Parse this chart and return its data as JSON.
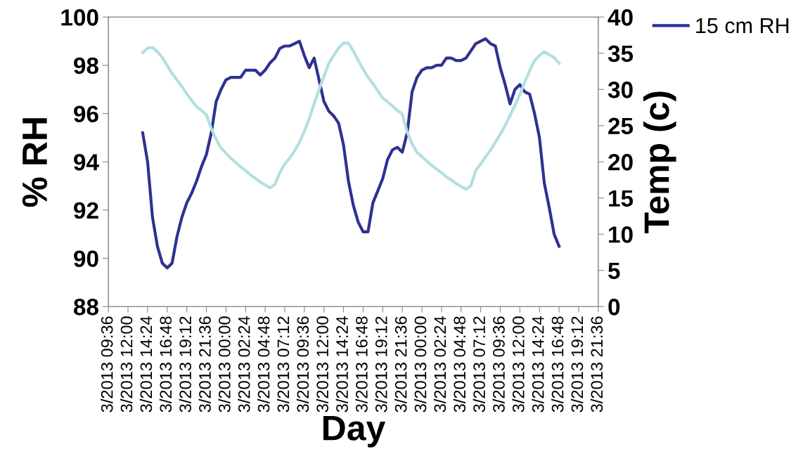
{
  "chart_data": {
    "type": "line",
    "xlabel": "Day",
    "ylabel": "% RH",
    "y2label": "Temp (c)",
    "categories": [
      "3/2013 09:36",
      null,
      null,
      null,
      "3/2013 12:00",
      null,
      null,
      null,
      "3/2013 14:24",
      null,
      null,
      null,
      "3/2013 16:48",
      null,
      null,
      null,
      "3/2013 19:12",
      null,
      null,
      null,
      "3/2013 21:36",
      null,
      null,
      null,
      "3/2013 00:00",
      null,
      null,
      null,
      "3/2013 02:24",
      null,
      null,
      null,
      "3/2013 04:48",
      null,
      null,
      null,
      "3/2013 07:12",
      null,
      null,
      null,
      "3/2013 09:36",
      null,
      null,
      null,
      "3/2013 12:00",
      null,
      null,
      null,
      "3/2013 14:24",
      null,
      null,
      null,
      "3/2013 16:48",
      null,
      null,
      null,
      "3/2013 19:12",
      null,
      null,
      null,
      "3/2013 21:36",
      null,
      null,
      null,
      "3/2013 00:00",
      null,
      null,
      null,
      "3/2013 02:24",
      null,
      null,
      null,
      "3/2013 04:48",
      null,
      null,
      null,
      "3/2013 07:12",
      null,
      null,
      null,
      "3/2013 09:36",
      null,
      null,
      null,
      "3/2013 12:00",
      null,
      null,
      null,
      "3/2013 14:24",
      null,
      null,
      null,
      "3/2013 16:48",
      null,
      null,
      null,
      "3/2013 19:12",
      null,
      null,
      null,
      "3/2013 21:36"
    ],
    "ylim": [
      88,
      100
    ],
    "yticks": [
      88,
      90,
      92,
      94,
      96,
      98,
      100
    ],
    "y2lim": [
      0,
      40
    ],
    "y2ticks": [
      0,
      5,
      10,
      15,
      20,
      25,
      30,
      35,
      40
    ],
    "grid": false,
    "legend": "top right",
    "marker": "none",
    "line_style": "solid",
    "series": [
      {
        "name": "15 cm RH",
        "color": "#2e3192",
        "values": [
          null,
          null,
          null,
          null,
          null,
          null,
          null,
          95.2,
          94.0,
          91.7,
          90.5,
          89.8,
          89.6,
          89.8,
          90.9,
          91.7,
          92.3,
          92.7,
          93.2,
          93.8,
          94.3,
          95.2,
          96.5,
          97.0,
          97.4,
          97.5,
          97.5,
          97.5,
          97.8,
          97.8,
          97.8,
          97.6,
          97.8,
          98.1,
          98.3,
          98.7,
          98.8,
          98.8,
          98.9,
          99.0,
          98.4,
          97.9,
          98.3,
          97.4,
          96.5,
          96.1,
          95.9,
          95.6,
          94.7,
          93.2,
          92.2,
          91.5,
          91.1,
          91.1,
          92.3,
          92.8,
          93.3,
          94.1,
          94.5,
          94.6,
          94.4,
          95.2,
          96.9,
          97.5,
          97.8,
          97.9,
          97.9,
          98.0,
          98.0,
          98.3,
          98.3,
          98.2,
          98.2,
          98.3,
          98.6,
          98.9,
          99.0,
          99.1,
          98.9,
          98.8,
          97.9,
          97.2,
          96.4,
          97.0,
          97.2,
          96.9,
          96.8,
          96.0,
          95.0,
          93.1,
          92.1,
          91.0,
          90.5,
          null,
          null,
          null,
          null,
          null,
          null,
          null,
          null
        ]
      },
      {
        "color": "#b3dfe0",
        "axis": "y2",
        "values": [
          null,
          null,
          null,
          null,
          null,
          null,
          null,
          35.1,
          35.7,
          35.8,
          35.2,
          34.4,
          33.3,
          32.2,
          31.3,
          30.4,
          29.4,
          28.5,
          27.6,
          27.1,
          26.5,
          24.6,
          23.1,
          21.9,
          21.2,
          20.5,
          19.9,
          19.3,
          18.8,
          18.2,
          17.7,
          17.2,
          16.8,
          16.4,
          16.9,
          18.5,
          19.7,
          20.5,
          21.5,
          22.7,
          24.2,
          26.0,
          28.0,
          30.0,
          31.8,
          33.6,
          34.7,
          35.7,
          36.4,
          36.4,
          35.3,
          34.0,
          32.8,
          31.7,
          30.8,
          29.8,
          28.8,
          28.3,
          27.7,
          27.1,
          26.6,
          24.1,
          22.5,
          21.3,
          20.7,
          20.1,
          19.5,
          19.0,
          18.5,
          17.9,
          17.5,
          17.0,
          16.6,
          16.2,
          16.7,
          18.8,
          19.7,
          20.7,
          21.6,
          22.7,
          23.8,
          25.0,
          26.4,
          27.8,
          29.3,
          31.0,
          32.6,
          34.0,
          34.7,
          35.2,
          34.8,
          34.4,
          33.6,
          null,
          null,
          null,
          null,
          null,
          null,
          null,
          null
        ]
      }
    ]
  }
}
